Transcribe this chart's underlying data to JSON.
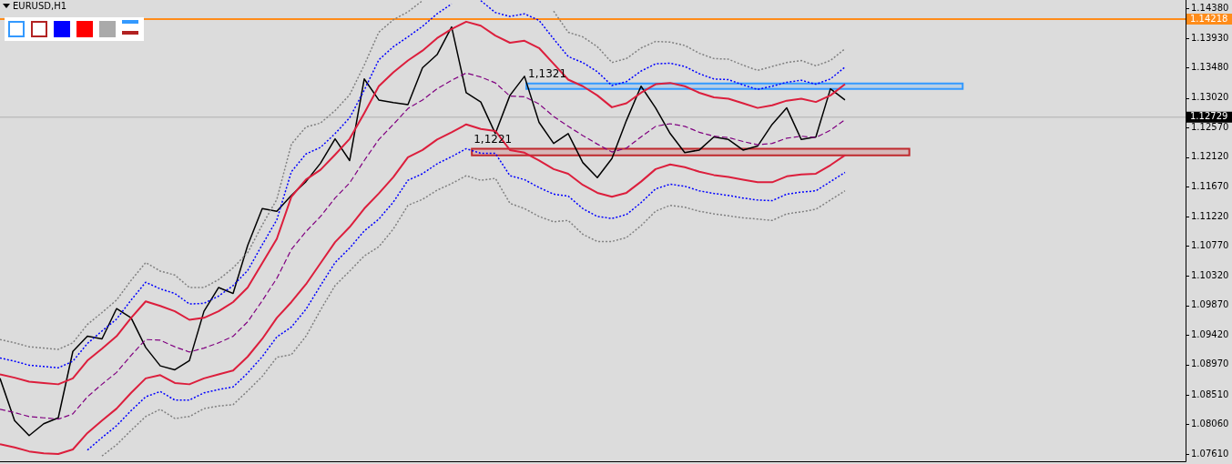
{
  "chart_data": {
    "type": "line",
    "title": "EURUSD,H1",
    "categories": [
      null,
      null,
      null,
      null,
      null,
      null,
      null,
      null,
      null,
      null,
      null,
      null,
      null,
      null,
      null,
      null,
      null,
      null,
      null,
      null,
      null,
      null,
      null,
      null,
      null,
      null,
      null,
      null,
      null,
      null,
      null,
      null,
      null,
      null,
      null,
      null,
      null,
      null,
      null,
      null,
      null,
      null,
      null,
      null,
      null,
      null,
      null,
      null,
      null,
      null,
      null,
      null,
      null,
      null,
      null,
      null,
      null,
      null,
      null
    ],
    "series": [
      {
        "color": "#808080",
        "line_style": "dotted",
        "values": [
          1.0935,
          1.093,
          1.0924,
          1.0922,
          1.092,
          1.093,
          1.0958,
          1.0976,
          1.0995,
          1.1025,
          1.1052,
          1.1039,
          1.1033,
          1.1014,
          1.1014,
          1.1026,
          1.1044,
          1.1067,
          1.1109,
          1.1148,
          1.1232,
          1.1258,
          1.1264,
          1.1283,
          1.1307,
          1.1352,
          1.1402,
          1.1421,
          1.1433,
          1.145,
          null,
          null,
          null,
          null,
          null,
          null,
          null,
          null,
          1.1434,
          1.1402,
          1.1395,
          1.138,
          1.1356,
          1.1362,
          1.1378,
          1.1388,
          1.1387,
          1.1382,
          1.137,
          1.1362,
          1.1361,
          1.1352,
          1.1344,
          1.135,
          1.1356,
          1.1359,
          1.1351,
          1.1359,
          1.1377
        ]
      },
      {
        "color": "#808080",
        "line_style": "dotted",
        "values": [
          null,
          null,
          null,
          null,
          null,
          null,
          null,
          1.0758,
          1.0775,
          1.0797,
          1.0818,
          1.0829,
          1.0815,
          1.0818,
          1.083,
          1.0834,
          1.0836,
          1.0857,
          1.0879,
          1.0908,
          1.0912,
          1.094,
          1.098,
          1.1017,
          1.1039,
          1.1062,
          1.1076,
          1.1103,
          1.1139,
          1.1148,
          1.1162,
          1.1172,
          1.1184,
          1.1177,
          1.118,
          1.1142,
          1.1134,
          1.1122,
          1.1114,
          1.1116,
          1.1095,
          1.1084,
          1.1084,
          1.109,
          1.1108,
          1.113,
          1.1139,
          1.1136,
          1.113,
          1.1126,
          1.1123,
          1.112,
          1.1118,
          1.1116,
          1.1126,
          1.1129,
          1.1133,
          1.1147,
          1.1161
        ]
      },
      {
        "color": "#0000ff",
        "line_style": "dotted",
        "values": [
          1.0907,
          1.0902,
          1.0896,
          1.0894,
          1.0892,
          1.0902,
          1.0929,
          1.0948,
          1.0966,
          1.0995,
          1.1022,
          1.1012,
          1.1005,
          1.0989,
          1.099,
          1.1001,
          1.1017,
          1.104,
          1.1079,
          1.1117,
          1.119,
          1.1217,
          1.1227,
          1.1248,
          1.1272,
          1.1314,
          1.136,
          1.138,
          1.1395,
          1.1411,
          1.143,
          1.1445,
          null,
          1.145,
          1.1432,
          1.1426,
          1.143,
          1.142,
          1.1392,
          1.1365,
          1.1356,
          1.1342,
          1.1321,
          1.1327,
          1.1343,
          1.1354,
          1.1355,
          1.135,
          1.1339,
          1.1331,
          1.133,
          1.1322,
          1.1315,
          1.132,
          1.1326,
          1.1329,
          1.1323,
          1.1331,
          1.1349
        ]
      },
      {
        "color": "#0000ff",
        "line_style": "dotted",
        "values": [
          null,
          null,
          null,
          null,
          null,
          null,
          1.0767,
          1.0786,
          1.0804,
          1.0827,
          1.0848,
          1.0856,
          1.0843,
          1.0843,
          1.0854,
          1.0859,
          1.0863,
          1.0884,
          1.0909,
          1.0939,
          1.0954,
          1.0981,
          1.1017,
          1.1052,
          1.1074,
          1.11,
          1.1118,
          1.1144,
          1.1177,
          1.1187,
          1.1202,
          1.1213,
          1.1225,
          1.1218,
          1.1218,
          1.1184,
          1.1178,
          1.1166,
          1.1156,
          1.1153,
          1.1134,
          1.1122,
          1.1119,
          1.1125,
          1.1143,
          1.1164,
          1.1171,
          1.1168,
          1.1161,
          1.1157,
          1.1154,
          1.115,
          1.1147,
          1.1146,
          1.1156,
          1.1159,
          1.1161,
          1.1175,
          1.1189
        ]
      },
      {
        "color": "#800080",
        "line_style": "dashed",
        "values": [
          1.0829,
          1.0824,
          1.0818,
          1.0816,
          1.0814,
          1.0822,
          1.0848,
          1.0867,
          1.0885,
          1.0911,
          1.0935,
          1.0934,
          1.0924,
          1.0916,
          1.0922,
          1.093,
          1.094,
          1.0962,
          1.0994,
          1.1028,
          1.1072,
          1.1099,
          1.1122,
          1.115,
          1.1173,
          1.1207,
          1.1239,
          1.1262,
          1.1286,
          1.1299,
          1.1316,
          1.1329,
          1.134,
          1.1334,
          1.1325,
          1.1305,
          1.1304,
          1.1293,
          1.1274,
          1.1259,
          1.1245,
          1.1232,
          1.122,
          1.1226,
          1.1243,
          1.1259,
          1.1263,
          1.1259,
          1.125,
          1.1244,
          1.1242,
          1.1236,
          1.1231,
          1.1233,
          1.1241,
          1.1244,
          1.1242,
          1.1253,
          1.1269
        ]
      },
      {
        "color": "#dc1e3c",
        "line_style": "solid",
        "values": [
          1.0882,
          1.0877,
          1.0871,
          1.0869,
          1.0867,
          1.0876,
          1.0903,
          1.0921,
          1.094,
          1.0968,
          1.0993,
          1.0986,
          1.0978,
          1.0965,
          1.0968,
          1.0978,
          1.0992,
          1.1014,
          1.1051,
          1.1088,
          1.1152,
          1.1178,
          1.1193,
          1.1216,
          1.124,
          1.1279,
          1.132,
          1.1341,
          1.1359,
          1.1374,
          1.1393,
          1.1407,
          1.1418,
          1.1412,
          1.1397,
          1.1386,
          1.1389,
          1.1378,
          1.1354,
          1.133,
          1.132,
          1.1306,
          1.1288,
          1.1294,
          1.131,
          1.1323,
          1.1325,
          1.132,
          1.131,
          1.1303,
          1.1301,
          1.1294,
          1.1287,
          1.1291,
          1.1298,
          1.1301,
          1.1296,
          1.1306,
          1.1323
        ]
      },
      {
        "color": "#dc1e3c",
        "line_style": "solid",
        "values": [
          1.0776,
          1.0771,
          1.0765,
          1.0762,
          1.0761,
          1.0768,
          1.0793,
          1.0812,
          1.083,
          1.0854,
          1.0876,
          1.0881,
          1.0869,
          1.0867,
          1.0876,
          1.0882,
          1.0888,
          1.0909,
          1.0936,
          1.0968,
          1.0992,
          1.1019,
          1.1051,
          1.1083,
          1.1106,
          1.1134,
          1.1157,
          1.1182,
          1.1212,
          1.1223,
          1.1239,
          1.125,
          1.1262,
          1.1255,
          1.1252,
          1.1223,
          1.1219,
          1.1207,
          1.1194,
          1.1187,
          1.117,
          1.1158,
          1.1152,
          1.1158,
          1.1175,
          1.1194,
          1.1201,
          1.1197,
          1.119,
          1.1185,
          1.1182,
          1.1178,
          1.1174,
          1.1174,
          1.1183,
          1.1186,
          1.1187,
          1.12,
          1.1215
        ]
      },
      {
        "color": "#000000",
        "line_style": "solid",
        "values": [
          1.0876,
          1.0812,
          1.0789,
          1.0807,
          1.0816,
          1.0917,
          1.094,
          1.0936,
          1.0982,
          1.0968,
          1.0923,
          1.0895,
          1.0889,
          1.0903,
          1.0978,
          1.1014,
          1.1005,
          1.1078,
          1.1134,
          1.113,
          1.1154,
          1.1175,
          1.1203,
          1.124,
          1.1207,
          1.1331,
          1.1299,
          1.1295,
          1.1292,
          1.1348,
          1.1368,
          1.141,
          1.131,
          1.1296,
          1.1248,
          1.1306,
          1.1335,
          1.1265,
          1.1233,
          1.1248,
          1.1204,
          1.1181,
          1.121,
          1.1268,
          1.132,
          1.1287,
          1.1248,
          1.1219,
          1.1223,
          1.1243,
          1.1239,
          1.1223,
          1.1229,
          1.1262,
          1.1287,
          1.1239,
          1.1243,
          1.1316,
          1.1299
        ]
      }
    ],
    "ylim": [
      1.075,
      1.1451
    ],
    "yticks": [
      {
        "value": 1.1438,
        "label": "1.14380"
      },
      {
        "value": 1.1393,
        "label": "1.13930"
      },
      {
        "value": 1.1348,
        "label": "1.13480"
      },
      {
        "value": 1.1302,
        "label": "1.13020"
      },
      {
        "value": 1.1257,
        "label": "1.12570"
      },
      {
        "value": 1.1212,
        "label": "1.12120"
      },
      {
        "value": 1.1167,
        "label": "1.11670"
      },
      {
        "value": 1.1122,
        "label": "1.11220"
      },
      {
        "value": 1.1077,
        "label": "1.10770"
      },
      {
        "value": 1.1032,
        "label": "1.10320"
      },
      {
        "value": 1.0987,
        "label": "1.09870"
      },
      {
        "value": 1.0942,
        "label": "1.09420"
      },
      {
        "value": 1.0897,
        "label": "1.08970"
      },
      {
        "value": 1.0851,
        "label": "1.08510"
      },
      {
        "value": 1.0806,
        "label": "1.08060"
      },
      {
        "value": 1.0761,
        "label": "1.07610"
      }
    ],
    "ref_lines": [
      {
        "axis": "y",
        "value": 1.14218,
        "label": "1.14218",
        "color": "#ff8c1a"
      },
      {
        "axis": "y",
        "value": 1.12729,
        "label": "1.12729",
        "color": "#b0b0b0"
      }
    ],
    "bands": [
      {
        "axis": "y",
        "from": 1.1316,
        "to": 1.1324,
        "label": "1,1321",
        "color": "#3399ff"
      },
      {
        "axis": "y",
        "from": 1.1215,
        "to": 1.1225,
        "label": "1,1221",
        "color": "#c0282d"
      }
    ],
    "grid": false,
    "legend": false,
    "marker": "none",
    "tick_labels": "y"
  }
}
